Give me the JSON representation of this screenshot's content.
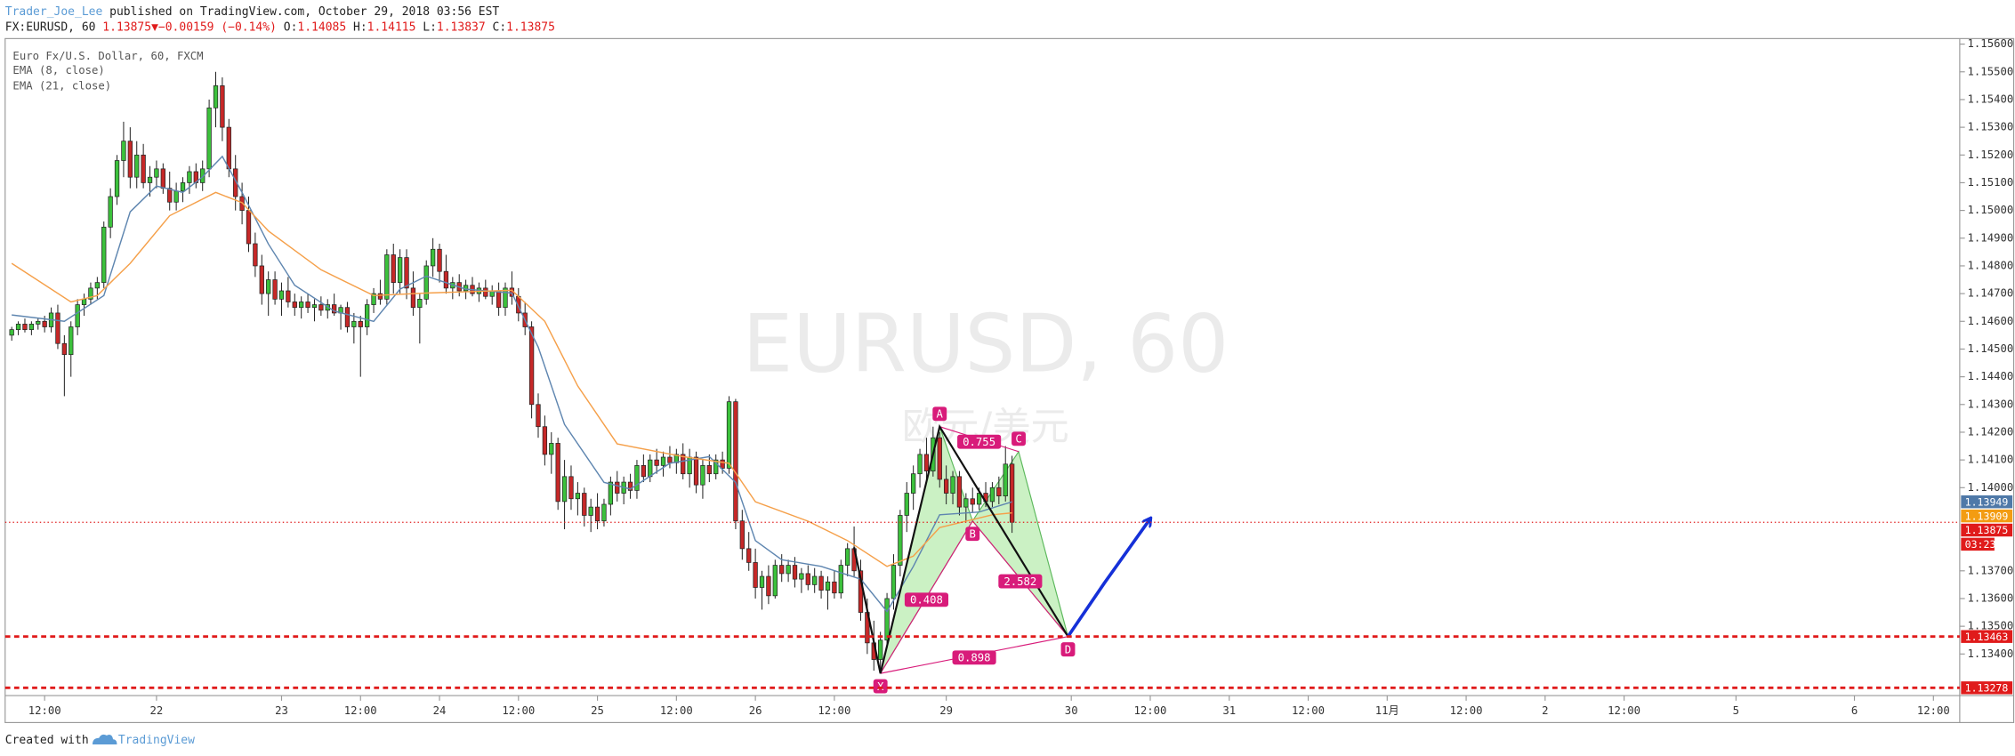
{
  "header": {
    "author": "Trader_Joe_Lee",
    "published": "published on TradingView.com, October 29, 2018 03:56 EST",
    "symbol": "FX:EURUSD, 60",
    "last": "1.13875",
    "arrow": "▼",
    "change": "−0.00159 (−0.14%)",
    "ohlc": [
      {
        "key": "O:",
        "value": "1.14085"
      },
      {
        "key": "H:",
        "value": "1.14115"
      },
      {
        "key": "L:",
        "value": "1.13837"
      },
      {
        "key": "C:",
        "value": "1.13875"
      }
    ]
  },
  "footer": {
    "created": "Created with",
    "brand": "TradingView"
  },
  "chart_data": {
    "type": "candlestick",
    "subtitle": "Euro Fx/U.S. Dollar, 60, FXCM",
    "watermark": "EURUSD, 60",
    "watermark_sub": "欧元/美元",
    "up_color": "#3cc13c",
    "down_color": "#c62828",
    "xlim": [
      -1,
      296
    ],
    "ylim": [
      1.1325,
      1.1562
    ],
    "yticks": [
      {
        "value": 1.156,
        "label": "1.15600"
      },
      {
        "value": 1.155,
        "label": "1.15500"
      },
      {
        "value": 1.154,
        "label": "1.15400"
      },
      {
        "value": 1.153,
        "label": "1.15300"
      },
      {
        "value": 1.152,
        "label": "1.15200"
      },
      {
        "value": 1.151,
        "label": "1.15100"
      },
      {
        "value": 1.15,
        "label": "1.15000"
      },
      {
        "value": 1.149,
        "label": "1.14900"
      },
      {
        "value": 1.148,
        "label": "1.14800"
      },
      {
        "value": 1.147,
        "label": "1.14700"
      },
      {
        "value": 1.146,
        "label": "1.14600"
      },
      {
        "value": 1.145,
        "label": "1.14500"
      },
      {
        "value": 1.144,
        "label": "1.14400"
      },
      {
        "value": 1.143,
        "label": "1.14300"
      },
      {
        "value": 1.142,
        "label": "1.14200"
      },
      {
        "value": 1.141,
        "label": "1.14100"
      },
      {
        "value": 1.14,
        "label": "1.14000"
      },
      {
        "value": 1.137,
        "label": "1.13700"
      },
      {
        "value": 1.136,
        "label": "1.13600"
      },
      {
        "value": 1.135,
        "label": "1.13500"
      },
      {
        "value": 1.134,
        "label": "1.13400"
      }
    ],
    "xticks": [
      {
        "value": 5,
        "label": "12:00"
      },
      {
        "value": 22,
        "label": "22"
      },
      {
        "value": 41,
        "label": "23"
      },
      {
        "value": 53,
        "label": "12:00"
      },
      {
        "value": 65,
        "label": "24"
      },
      {
        "value": 77,
        "label": "12:00"
      },
      {
        "value": 89,
        "label": "25"
      },
      {
        "value": 101,
        "label": "12:00"
      },
      {
        "value": 113,
        "label": "26"
      },
      {
        "value": 125,
        "label": "12:00"
      },
      {
        "value": 142,
        "label": "29"
      },
      {
        "value": 161,
        "label": "30"
      },
      {
        "value": 173,
        "label": "12:00"
      },
      {
        "value": 185,
        "label": "31"
      },
      {
        "value": 197,
        "label": "12:00"
      },
      {
        "value": 209,
        "label": "11月"
      },
      {
        "value": 221,
        "label": "12:00"
      },
      {
        "value": 233,
        "label": "2"
      },
      {
        "value": 245,
        "label": "12:00"
      },
      {
        "value": 262,
        "label": "5"
      },
      {
        "value": 280,
        "label": "6"
      },
      {
        "value": 292,
        "label": "12:00"
      }
    ],
    "ohlc": [
      [
        1.1455,
        1.1458,
        1.1453,
        1.1457
      ],
      [
        1.1457,
        1.146,
        1.1455,
        1.1459
      ],
      [
        1.1459,
        1.1461,
        1.1456,
        1.1457
      ],
      [
        1.1457,
        1.146,
        1.1455,
        1.1459
      ],
      [
        1.1459,
        1.1461,
        1.1457,
        1.146
      ],
      [
        1.146,
        1.1462,
        1.1456,
        1.1458
      ],
      [
        1.1458,
        1.1465,
        1.1456,
        1.1463
      ],
      [
        1.1463,
        1.1466,
        1.145,
        1.1452
      ],
      [
        1.1452,
        1.1455,
        1.1433,
        1.1448
      ],
      [
        1.1448,
        1.146,
        1.144,
        1.1458
      ],
      [
        1.1458,
        1.1468,
        1.1455,
        1.1466
      ],
      [
        1.1466,
        1.147,
        1.1462,
        1.1468
      ],
      [
        1.1468,
        1.1474,
        1.1466,
        1.1472
      ],
      [
        1.1472,
        1.1476,
        1.1468,
        1.1474
      ],
      [
        1.1474,
        1.1496,
        1.1472,
        1.1494
      ],
      [
        1.1494,
        1.1508,
        1.149,
        1.1505
      ],
      [
        1.1505,
        1.152,
        1.1502,
        1.1518
      ],
      [
        1.1518,
        1.1532,
        1.1512,
        1.1525
      ],
      [
        1.1525,
        1.153,
        1.1508,
        1.1512
      ],
      [
        1.1512,
        1.1525,
        1.1508,
        1.152
      ],
      [
        1.152,
        1.1524,
        1.1508,
        1.151
      ],
      [
        1.151,
        1.1516,
        1.1505,
        1.1512
      ],
      [
        1.1512,
        1.1518,
        1.1508,
        1.1515
      ],
      [
        1.1515,
        1.1517,
        1.1506,
        1.1508
      ],
      [
        1.1508,
        1.1514,
        1.15,
        1.1503
      ],
      [
        1.1503,
        1.151,
        1.15,
        1.1507
      ],
      [
        1.1507,
        1.1512,
        1.1503,
        1.151
      ],
      [
        1.151,
        1.1516,
        1.1506,
        1.1514
      ],
      [
        1.1514,
        1.1517,
        1.1508,
        1.151
      ],
      [
        1.151,
        1.1518,
        1.1507,
        1.1515
      ],
      [
        1.1515,
        1.154,
        1.1512,
        1.1537
      ],
      [
        1.1537,
        1.155,
        1.153,
        1.1545
      ],
      [
        1.1545,
        1.1548,
        1.1525,
        1.153
      ],
      [
        1.153,
        1.1533,
        1.1512,
        1.1515
      ],
      [
        1.1515,
        1.152,
        1.15,
        1.1505
      ],
      [
        1.1505,
        1.151,
        1.1495,
        1.15
      ],
      [
        1.15,
        1.1505,
        1.1485,
        1.1488
      ],
      [
        1.1488,
        1.1492,
        1.1476,
        1.148
      ],
      [
        1.148,
        1.1484,
        1.1466,
        1.147
      ],
      [
        1.147,
        1.1478,
        1.1462,
        1.1475
      ],
      [
        1.1475,
        1.1478,
        1.1466,
        1.1468
      ],
      [
        1.1468,
        1.1474,
        1.1462,
        1.1471
      ],
      [
        1.1471,
        1.1476,
        1.1465,
        1.1467
      ],
      [
        1.1467,
        1.147,
        1.1462,
        1.1465
      ],
      [
        1.1465,
        1.1469,
        1.1461,
        1.1467
      ],
      [
        1.1467,
        1.147,
        1.1463,
        1.1465
      ],
      [
        1.1465,
        1.1468,
        1.146,
        1.1466
      ],
      [
        1.1466,
        1.1469,
        1.1462,
        1.1464
      ],
      [
        1.1464,
        1.1468,
        1.1461,
        1.1466
      ],
      [
        1.1466,
        1.147,
        1.1462,
        1.1463
      ],
      [
        1.1463,
        1.1466,
        1.1457,
        1.1465
      ],
      [
        1.1465,
        1.1467,
        1.1456,
        1.1458
      ],
      [
        1.1458,
        1.1463,
        1.1452,
        1.146
      ],
      [
        1.146,
        1.1462,
        1.144,
        1.1458
      ],
      [
        1.1458,
        1.1468,
        1.1455,
        1.1466
      ],
      [
        1.1466,
        1.1472,
        1.1463,
        1.147
      ],
      [
        1.147,
        1.1475,
        1.1466,
        1.1468
      ],
      [
        1.1468,
        1.1486,
        1.1466,
        1.1484
      ],
      [
        1.1484,
        1.1488,
        1.147,
        1.1474
      ],
      [
        1.1474,
        1.1486,
        1.147,
        1.1483
      ],
      [
        1.1483,
        1.1486,
        1.1468,
        1.1472
      ],
      [
        1.1472,
        1.1478,
        1.1462,
        1.1465
      ],
      [
        1.1465,
        1.147,
        1.1452,
        1.1468
      ],
      [
        1.1468,
        1.1482,
        1.1466,
        1.148
      ],
      [
        1.148,
        1.149,
        1.1476,
        1.1486
      ],
      [
        1.1486,
        1.1488,
        1.1474,
        1.1478
      ],
      [
        1.1478,
        1.1484,
        1.147,
        1.1472
      ],
      [
        1.1472,
        1.1476,
        1.1468,
        1.1474
      ],
      [
        1.1474,
        1.1477,
        1.1469,
        1.1471
      ],
      [
        1.1471,
        1.1475,
        1.1468,
        1.1473
      ],
      [
        1.1473,
        1.1476,
        1.1469,
        1.147
      ],
      [
        1.147,
        1.1474,
        1.1467,
        1.1472
      ],
      [
        1.1472,
        1.1475,
        1.1468,
        1.1469
      ],
      [
        1.1469,
        1.1473,
        1.1466,
        1.1471
      ],
      [
        1.1471,
        1.1474,
        1.1462,
        1.1465
      ],
      [
        1.1465,
        1.1474,
        1.1462,
        1.1472
      ],
      [
        1.1472,
        1.1478,
        1.1466,
        1.1469
      ],
      [
        1.1469,
        1.1472,
        1.146,
        1.1463
      ],
      [
        1.1463,
        1.1467,
        1.1455,
        1.1458
      ],
      [
        1.1458,
        1.146,
        1.1425,
        1.143
      ],
      [
        1.143,
        1.1434,
        1.1418,
        1.1422
      ],
      [
        1.1422,
        1.1426,
        1.1408,
        1.1412
      ],
      [
        1.1412,
        1.142,
        1.1405,
        1.1416
      ],
      [
        1.1416,
        1.1418,
        1.1392,
        1.1395
      ],
      [
        1.1395,
        1.141,
        1.1385,
        1.1404
      ],
      [
        1.1404,
        1.1408,
        1.1392,
        1.1396
      ],
      [
        1.1396,
        1.1402,
        1.139,
        1.1398
      ],
      [
        1.1398,
        1.14,
        1.1386,
        1.139
      ],
      [
        1.139,
        1.1396,
        1.1384,
        1.1393
      ],
      [
        1.1393,
        1.1398,
        1.1385,
        1.1388
      ],
      [
        1.1388,
        1.1396,
        1.1386,
        1.1394
      ],
      [
        1.1394,
        1.1404,
        1.139,
        1.1402
      ],
      [
        1.1402,
        1.1406,
        1.1395,
        1.1398
      ],
      [
        1.1398,
        1.1404,
        1.1394,
        1.1402
      ],
      [
        1.1402,
        1.1405,
        1.1396,
        1.1399
      ],
      [
        1.1399,
        1.141,
        1.1396,
        1.1408
      ],
      [
        1.1408,
        1.1412,
        1.1402,
        1.1404
      ],
      [
        1.1404,
        1.1412,
        1.1402,
        1.141
      ],
      [
        1.141,
        1.1414,
        1.1405,
        1.1408
      ],
      [
        1.1408,
        1.1413,
        1.1404,
        1.1411
      ],
      [
        1.1411,
        1.1415,
        1.1407,
        1.1409
      ],
      [
        1.1409,
        1.1414,
        1.1405,
        1.1412
      ],
      [
        1.1412,
        1.1416,
        1.1403,
        1.1405
      ],
      [
        1.1405,
        1.1414,
        1.14,
        1.1411
      ],
      [
        1.1411,
        1.1413,
        1.1398,
        1.1401
      ],
      [
        1.1401,
        1.141,
        1.1396,
        1.1408
      ],
      [
        1.1408,
        1.1412,
        1.1402,
        1.1405
      ],
      [
        1.1405,
        1.1412,
        1.1403,
        1.141
      ],
      [
        1.141,
        1.1413,
        1.1405,
        1.1407
      ],
      [
        1.1407,
        1.1433,
        1.1405,
        1.1431
      ],
      [
        1.1431,
        1.1432,
        1.1385,
        1.1388
      ],
      [
        1.1388,
        1.1392,
        1.1374,
        1.1378
      ],
      [
        1.1378,
        1.1384,
        1.137,
        1.1373
      ],
      [
        1.1373,
        1.1378,
        1.136,
        1.1364
      ],
      [
        1.1364,
        1.137,
        1.1356,
        1.1368
      ],
      [
        1.1368,
        1.1372,
        1.1358,
        1.1361
      ],
      [
        1.1361,
        1.1374,
        1.136,
        1.1372
      ],
      [
        1.1372,
        1.1376,
        1.1366,
        1.1369
      ],
      [
        1.1369,
        1.1374,
        1.1366,
        1.1372
      ],
      [
        1.1372,
        1.1375,
        1.1364,
        1.1367
      ],
      [
        1.1367,
        1.1371,
        1.1362,
        1.1369
      ],
      [
        1.1369,
        1.1372,
        1.1363,
        1.1365
      ],
      [
        1.1365,
        1.1371,
        1.1362,
        1.1368
      ],
      [
        1.1368,
        1.137,
        1.136,
        1.1363
      ],
      [
        1.1363,
        1.1368,
        1.1356,
        1.1366
      ],
      [
        1.1366,
        1.137,
        1.136,
        1.1362
      ],
      [
        1.1362,
        1.1374,
        1.136,
        1.1372
      ],
      [
        1.1372,
        1.138,
        1.1368,
        1.1378
      ],
      [
        1.1378,
        1.1386,
        1.1368,
        1.137
      ],
      [
        1.137,
        1.1374,
        1.1352,
        1.1355
      ],
      [
        1.1355,
        1.136,
        1.134,
        1.1344
      ],
      [
        1.1344,
        1.1352,
        1.1334,
        1.1338
      ],
      [
        1.1338,
        1.1348,
        1.1333,
        1.1345
      ],
      [
        1.1345,
        1.1362,
        1.1342,
        1.136
      ],
      [
        1.136,
        1.1376,
        1.1356,
        1.1372
      ],
      [
        1.1372,
        1.1392,
        1.1368,
        1.139
      ],
      [
        1.139,
        1.1402,
        1.1384,
        1.1398
      ],
      [
        1.1398,
        1.1408,
        1.1392,
        1.1405
      ],
      [
        1.1405,
        1.1414,
        1.14,
        1.1412
      ],
      [
        1.1412,
        1.1418,
        1.1402,
        1.1406
      ],
      [
        1.1406,
        1.1422,
        1.1404,
        1.1418
      ],
      [
        1.1418,
        1.142,
        1.14,
        1.1403
      ],
      [
        1.1403,
        1.1408,
        1.1394,
        1.1398
      ],
      [
        1.1398,
        1.1406,
        1.1394,
        1.1404
      ],
      [
        1.1404,
        1.1406,
        1.139,
        1.1393
      ],
      [
        1.1393,
        1.1398,
        1.1388,
        1.1396
      ],
      [
        1.1396,
        1.14,
        1.1391,
        1.1394
      ],
      [
        1.1394,
        1.14,
        1.1392,
        1.1398
      ],
      [
        1.1398,
        1.1402,
        1.1393,
        1.1395
      ],
      [
        1.1395,
        1.1402,
        1.1393,
        1.14
      ],
      [
        1.14,
        1.1404,
        1.1394,
        1.1397
      ],
      [
        1.1397,
        1.1415,
        1.1395,
        1.14085
      ],
      [
        1.14085,
        1.14115,
        1.13837,
        1.13875
      ]
    ],
    "series": [
      {
        "name": "EMA (8, close)",
        "color": "#5f86b0",
        "x": [
          0,
          8,
          14,
          18,
          22,
          26,
          29,
          32,
          35,
          39,
          43,
          49,
          55,
          59,
          63,
          69,
          76,
          80,
          84,
          90,
          94,
          100,
          106,
          110,
          113,
          117,
          123,
          129,
          133,
          137,
          141,
          147,
          152
        ],
        "values": [
          1.14623,
          1.146,
          1.14693,
          1.14995,
          1.15088,
          1.15065,
          1.15121,
          1.15195,
          1.15065,
          1.14879,
          1.1473,
          1.14637,
          1.146,
          1.14716,
          1.14763,
          1.14716,
          1.14702,
          1.14507,
          1.14228,
          1.14019,
          1.13995,
          1.14088,
          1.14112,
          1.14019,
          1.13809,
          1.1374,
          1.13716,
          1.1367,
          1.13553,
          1.13716,
          1.13902,
          1.13912,
          1.13949
        ]
      },
      {
        "name": "EMA (21, close)",
        "color": "#f5a04a",
        "x": [
          0,
          9,
          13,
          18,
          24,
          31,
          35,
          39,
          47,
          55,
          63,
          76,
          81,
          86,
          92,
          102,
          109,
          113,
          121,
          127,
          133,
          137,
          141,
          149,
          152
        ],
        "values": [
          1.14809,
          1.1467,
          1.14693,
          1.14809,
          1.14981,
          1.15065,
          1.15028,
          1.14926,
          1.14786,
          1.14693,
          1.14702,
          1.14712,
          1.146,
          1.14367,
          1.14158,
          1.14112,
          1.14088,
          1.13949,
          1.13879,
          1.13809,
          1.13716,
          1.13753,
          1.13856,
          1.13902,
          1.13909
        ]
      }
    ],
    "pattern": {
      "color": "#d81b7a",
      "fill": "#b9ecb0",
      "edge": "#5cb85c",
      "points": [
        {
          "label": "X",
          "x": 132,
          "y": 1.1333
        },
        {
          "label": "A",
          "x": 141,
          "y": 1.1422
        },
        {
          "label": "B",
          "x": 146,
          "y": 1.1388
        },
        {
          "label": "C",
          "x": 153,
          "y": 1.1413
        },
        {
          "label": "D",
          "x": 160.5,
          "y": 1.13463
        }
      ],
      "ratios": [
        0.755,
        0.408,
        2.582,
        0.898
      ]
    },
    "swing": {
      "color": "#111111",
      "x": [
        128,
        132,
        141,
        160.5
      ],
      "y": [
        1.13785,
        1.1333,
        1.1422,
        1.13463
      ]
    },
    "projection": {
      "color": "#1530d8",
      "x": [
        160.5,
        166,
        173
      ],
      "y": [
        1.13463,
        1.13655,
        1.13888
      ]
    },
    "price_labels": [
      {
        "value": 1.13949,
        "color": "#4f79a8"
      },
      {
        "value": 1.13909,
        "color": "#f39c12"
      },
      {
        "value": 1.13875,
        "color": "#e01b1b",
        "line": "dotted",
        "countdown": "03:23"
      },
      {
        "value": 1.13463,
        "color": "#e01b1b",
        "line": "dashed"
      },
      {
        "value": 1.13278,
        "color": "#e01b1b",
        "line": "dashed"
      }
    ]
  }
}
